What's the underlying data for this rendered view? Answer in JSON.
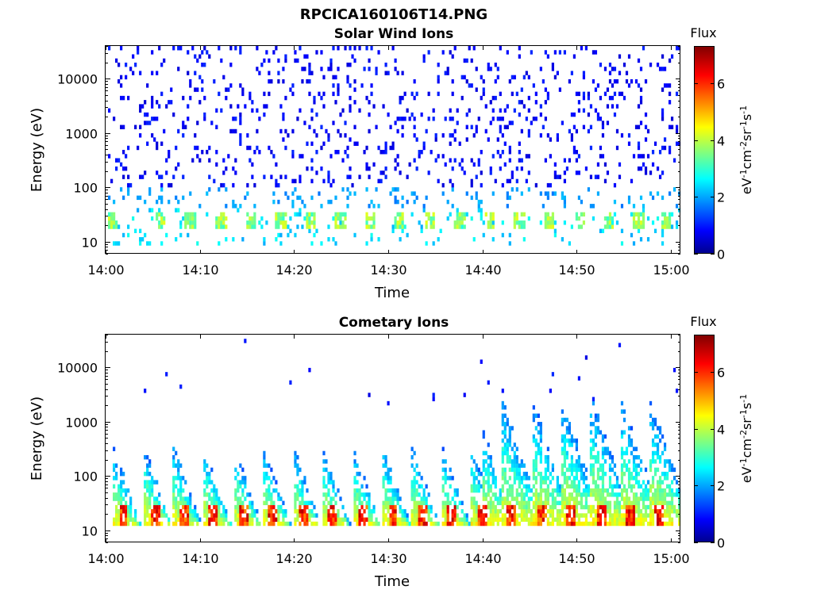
{
  "figure_title": "RPCICA160106T14.PNG",
  "colors": {
    "colormap": [
      "#00008f",
      "#0000ff",
      "#00ffff",
      "#ffff00",
      "#ff0000",
      "#800000"
    ]
  },
  "chart_data": [
    {
      "type": "heatmap",
      "title": "Solar Wind Ions",
      "xlabel": "Time",
      "ylabel": "Energy (eV)",
      "x_ticks": [
        "14:00",
        "14:10",
        "14:20",
        "14:30",
        "14:40",
        "14:50",
        "15:00"
      ],
      "y_ticks": [
        "10",
        "100",
        "1000",
        "10000"
      ],
      "xlim": [
        "14:00",
        "15:01"
      ],
      "ylim": [
        6,
        40000
      ],
      "y_scale": "log",
      "colorbar": {
        "label_top": "Flux",
        "unit": "eV-1cm-2sr-1s-1",
        "ticks": [
          "0",
          "2",
          "4",
          "6"
        ],
        "range": [
          0,
          7.3
        ]
      },
      "burst_times_min": [
        0.8,
        5.9,
        9.0,
        12.3,
        15.4,
        18.6,
        21.7,
        24.9,
        28.1,
        31.2,
        34.4,
        37.6,
        40.7,
        43.9,
        47.1,
        50.3,
        53.4,
        56.6,
        59.5
      ],
      "description_grid": false
    },
    {
      "type": "heatmap",
      "title": "Cometary Ions",
      "xlabel": "Time",
      "ylabel": "Energy (eV)",
      "x_ticks": [
        "14:00",
        "14:10",
        "14:20",
        "14:30",
        "14:40",
        "14:50",
        "15:00"
      ],
      "y_ticks": [
        "10",
        "100",
        "1000",
        "10000"
      ],
      "xlim": [
        "14:00",
        "15:01"
      ],
      "ylim": [
        6,
        40000
      ],
      "y_scale": "log",
      "colorbar": {
        "label_top": "Flux",
        "unit": "eV-1cm-2sr-1s-1",
        "ticks": [
          "0",
          "2",
          "4",
          "6"
        ],
        "range": [
          0,
          7.3
        ]
      },
      "burst_times_min": [
        1.0,
        4.3,
        7.4,
        10.6,
        13.8,
        16.9,
        20.1,
        23.2,
        26.4,
        29.6,
        32.7,
        35.9,
        39.0,
        42.2,
        45.4,
        48.5,
        51.7,
        54.8,
        57.9
      ]
    }
  ]
}
